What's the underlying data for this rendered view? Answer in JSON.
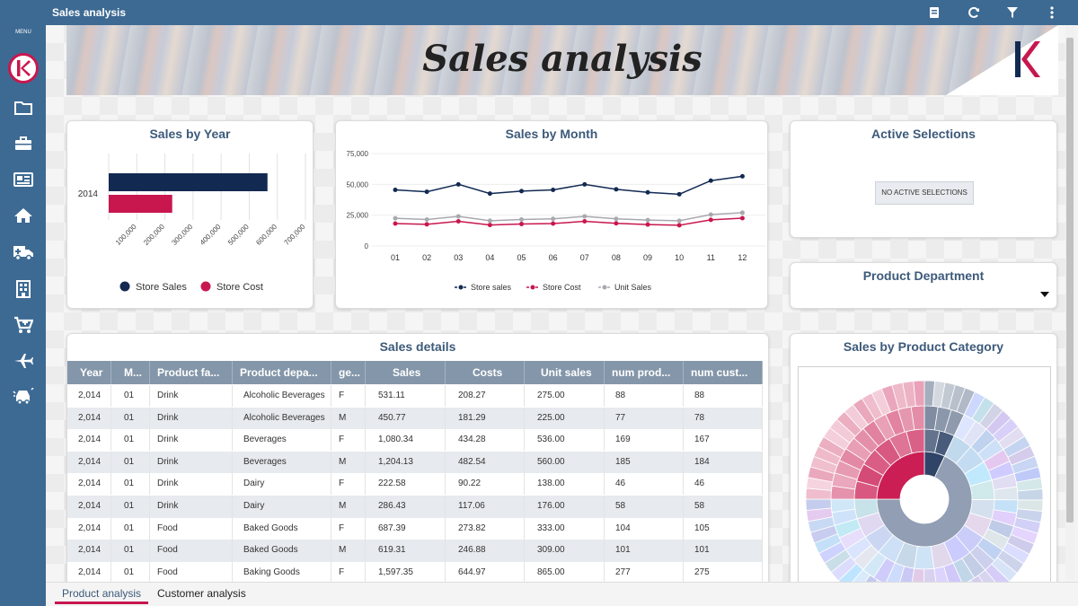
{
  "app": {
    "title": "Sales analysis",
    "menu_label": "MENU"
  },
  "banner": {
    "title": "Sales analysis"
  },
  "topbar_icons": [
    "bookmark-icon",
    "refresh-icon",
    "filter-icon",
    "more-vertical-icon"
  ],
  "sidebar_icons": [
    "folder-icon",
    "briefcase-icon",
    "newspaper-icon",
    "home-icon",
    "ambulance-icon",
    "building-icon",
    "cart-icon",
    "plane-icon",
    "car-crash-icon"
  ],
  "colors": {
    "navy": "#122a52",
    "crimson": "#c8174f",
    "grey": "#a8a8b0",
    "accent": "#3d6a93"
  },
  "panels": {
    "sales_by_year": "Sales by Year",
    "sales_by_month": "Sales by Month",
    "active_selections": "Active Selections",
    "product_department": "Product Department",
    "sales_details": "Sales details",
    "sales_by_category": "Sales by Product Category"
  },
  "active_selections": {
    "empty_label": "NO ACTIVE SELECTIONS"
  },
  "chart_data": [
    {
      "type": "bar",
      "title": "Sales by Year",
      "orientation": "horizontal",
      "categories": [
        "2014"
      ],
      "series": [
        {
          "name": "Store Sales",
          "values": [
            565000
          ],
          "color": "#122a52"
        },
        {
          "name": "Store Cost",
          "values": [
            226000
          ],
          "color": "#c8174f"
        }
      ],
      "xticks": [
        "100,000",
        "200,000",
        "300,000",
        "400,000",
        "500,000",
        "600,000",
        "700,000"
      ],
      "xlim": [
        0,
        700000
      ],
      "legend": "bottom",
      "grid": true
    },
    {
      "type": "line",
      "title": "Sales by Month",
      "x": [
        "01",
        "02",
        "03",
        "04",
        "05",
        "06",
        "07",
        "08",
        "09",
        "10",
        "11",
        "12"
      ],
      "yticks": [
        "75,000",
        "50,000",
        "25,000",
        "0"
      ],
      "ylim": [
        0,
        75000
      ],
      "series": [
        {
          "name": "Store sales",
          "color": "#122a52",
          "values": [
            45500,
            44000,
            50000,
            42500,
            44500,
            45500,
            50000,
            46000,
            43500,
            42000,
            53000,
            56500
          ]
        },
        {
          "name": "Store Cost",
          "color": "#c8174f",
          "values": [
            18200,
            17600,
            20000,
            17000,
            17800,
            18200,
            20000,
            18400,
            17400,
            16800,
            21200,
            22600
          ]
        },
        {
          "name": "Unit Sales",
          "color": "#a8a8b0",
          "values": [
            22500,
            21500,
            24000,
            20500,
            21500,
            22000,
            24000,
            22000,
            21000,
            20500,
            25500,
            27000
          ]
        }
      ],
      "legend": "bottom",
      "grid": true
    }
  ],
  "product_department": {
    "value": ""
  },
  "table": {
    "columns": [
      "Year",
      "M...",
      "Product fa...",
      "Product depa...",
      "ge...",
      "Sales",
      "Costs",
      "Unit sales",
      "num prod...",
      "num cust..."
    ],
    "rows": [
      [
        "2,014",
        "01",
        "Drink",
        "Alcoholic Beverages",
        "F",
        "531.11",
        "208.27",
        "275.00",
        "88",
        "88"
      ],
      [
        "2,014",
        "01",
        "Drink",
        "Alcoholic Beverages",
        "M",
        "450.77",
        "181.29",
        "225.00",
        "77",
        "78"
      ],
      [
        "2,014",
        "01",
        "Drink",
        "Beverages",
        "F",
        "1,080.34",
        "434.28",
        "536.00",
        "169",
        "167"
      ],
      [
        "2,014",
        "01",
        "Drink",
        "Beverages",
        "M",
        "1,204.13",
        "482.54",
        "560.00",
        "185",
        "184"
      ],
      [
        "2,014",
        "01",
        "Drink",
        "Dairy",
        "F",
        "222.58",
        "90.22",
        "138.00",
        "46",
        "46"
      ],
      [
        "2,014",
        "01",
        "Drink",
        "Dairy",
        "M",
        "286.43",
        "117.06",
        "176.00",
        "58",
        "58"
      ],
      [
        "2,014",
        "01",
        "Food",
        "Baked Goods",
        "F",
        "687.39",
        "273.82",
        "333.00",
        "104",
        "105"
      ],
      [
        "2,014",
        "01",
        "Food",
        "Baked Goods",
        "M",
        "619.31",
        "246.88",
        "309.00",
        "101",
        "101"
      ],
      [
        "2,014",
        "01",
        "Food",
        "Baking Goods",
        "F",
        "1,597.35",
        "644.97",
        "865.00",
        "277",
        "275"
      ]
    ]
  },
  "tabs": [
    {
      "label": "Product analysis",
      "active": true
    },
    {
      "label": "Customer analysis",
      "active": false
    }
  ]
}
